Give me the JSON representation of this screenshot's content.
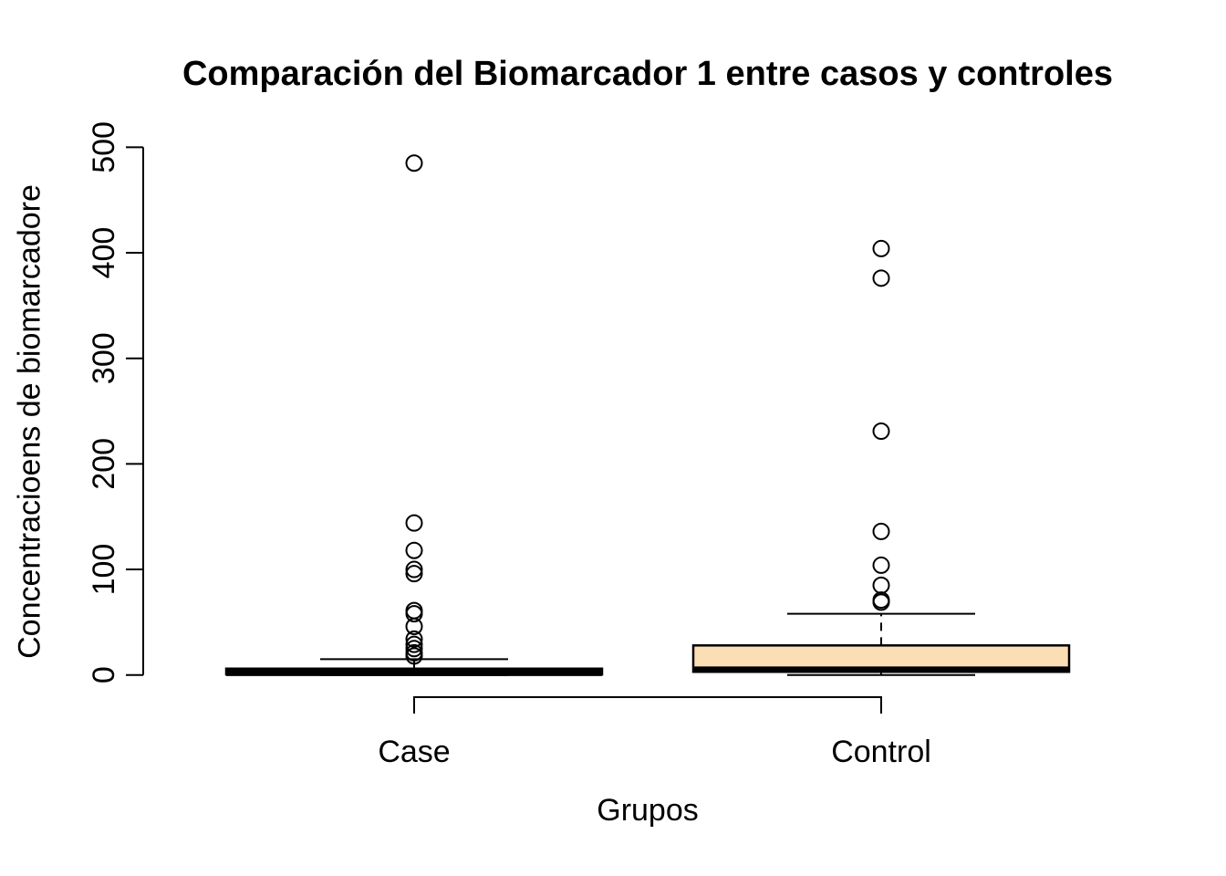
{
  "chart_data": {
    "type": "boxplot",
    "title": "Comparación del Biomarcador 1 entre casos y controles",
    "xlabel": "Grupos",
    "ylabel": "Concentracioens de biomarcadore",
    "ylim": [
      0,
      500
    ],
    "yticks": [
      0,
      100,
      200,
      300,
      400,
      500
    ],
    "categories": [
      "Case",
      "Control"
    ],
    "grid": false,
    "legend": false,
    "stroke_color": "#000000",
    "background": "#FFFFFF",
    "groups": [
      {
        "label": "Case",
        "box_fill": "#50E3A4",
        "q1": 0.5,
        "median": 2,
        "q3": 6,
        "whisker_low": 0,
        "whisker_high": 15,
        "outliers": [
          485,
          144,
          118,
          100,
          96,
          61,
          58,
          46,
          34,
          29,
          25,
          21,
          18
        ]
      },
      {
        "label": "Control",
        "box_fill": "#FCDEB4",
        "q1": 3,
        "median": 5,
        "q3": 28,
        "whisker_low": 0,
        "whisker_high": 58,
        "outliers": [
          404,
          376,
          231,
          136,
          104,
          85,
          71,
          69
        ]
      }
    ]
  }
}
